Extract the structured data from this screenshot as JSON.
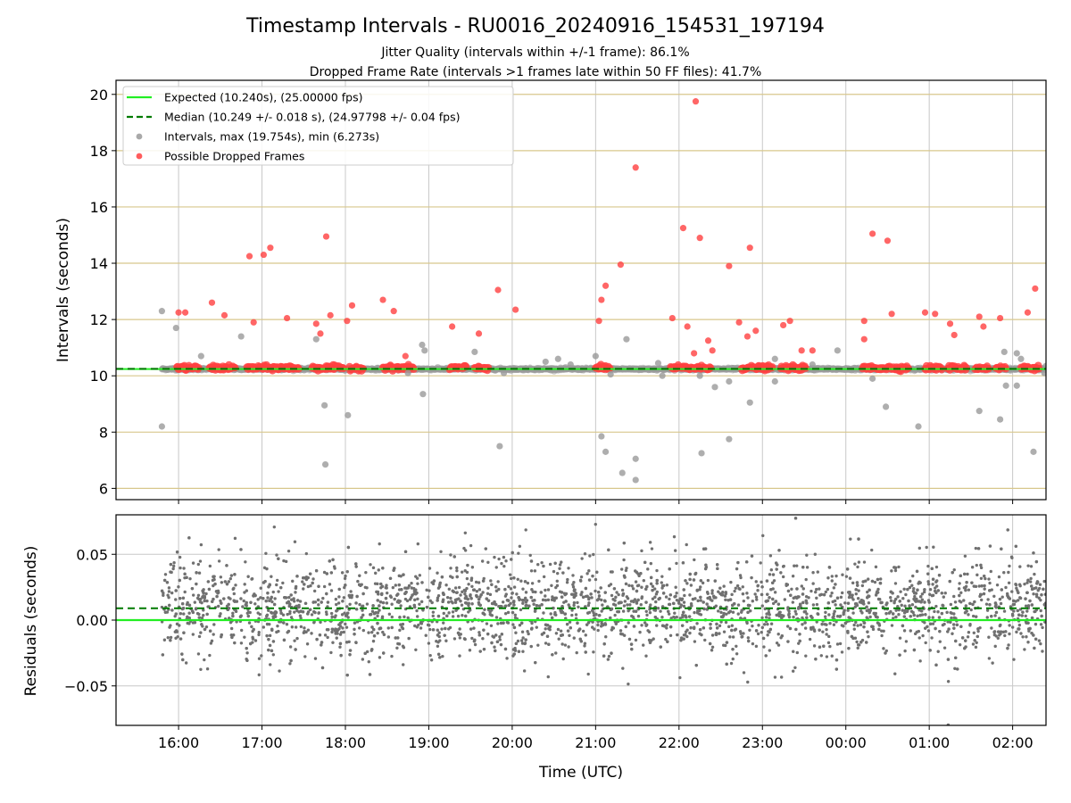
{
  "chart_data": [
    {
      "type": "scatter",
      "title": "Timestamp Intervals - RU0016_20240916_154531_197194",
      "subtitle_lines": [
        "Jitter Quality (intervals within +/-1 frame): 86.1%",
        "Dropped Frame Rate (intervals >1 frames late within 50 FF files): 41.7%"
      ],
      "ylabel": "Intervals (seconds)",
      "ylim": [
        5.6,
        20.5
      ],
      "yticks": [
        6,
        8,
        10,
        12,
        14,
        16,
        18,
        20
      ],
      "xlim_hours": [
        15.25,
        26.4
      ],
      "x_grid_hours": [
        16,
        17,
        18,
        19,
        20,
        21,
        22,
        23,
        24,
        25,
        26
      ],
      "grid": true,
      "legend_position": "upper-left",
      "expected_interval": 10.24,
      "median_interval": 10.249,
      "band_start_hour": 15.8,
      "band_end_hour": 26.4,
      "legend": [
        {
          "label": "Expected (10.240s), (25.00000 fps)",
          "style": "line",
          "color": "#22ee22"
        },
        {
          "label": "Median (10.249 +/- 0.018 s), (24.97798 +/- 0.04 fps)",
          "style": "dashed",
          "color": "#007a00"
        },
        {
          "label": "Intervals, max (19.754s), min (6.273s)",
          "style": "marker",
          "color": "#9a9a9a"
        },
        {
          "label": "Possible Dropped Frames",
          "style": "marker",
          "color": "#ff4040"
        }
      ],
      "series": [
        {
          "name": "Intervals, max (19.754s), min (6.273s)",
          "points": [
            [
              15.8,
              12.3
            ],
            [
              15.8,
              8.2
            ],
            [
              15.97,
              11.7
            ],
            [
              16.27,
              10.7
            ],
            [
              16.75,
              11.4
            ],
            [
              17.65,
              11.3
            ],
            [
              17.75,
              8.95
            ],
            [
              17.76,
              6.85
            ],
            [
              18.03,
              8.6
            ],
            [
              18.75,
              10.1
            ],
            [
              18.92,
              11.1
            ],
            [
              18.95,
              10.9
            ],
            [
              18.93,
              9.35
            ],
            [
              19.55,
              10.85
            ],
            [
              19.85,
              7.5
            ],
            [
              19.9,
              10.1
            ],
            [
              20.4,
              10.5
            ],
            [
              20.55,
              10.6
            ],
            [
              20.7,
              10.4
            ],
            [
              21.0,
              10.7
            ],
            [
              21.07,
              7.85
            ],
            [
              21.12,
              7.3
            ],
            [
              21.18,
              10.05
            ],
            [
              21.32,
              6.55
            ],
            [
              21.37,
              11.3
            ],
            [
              21.48,
              7.05
            ],
            [
              21.48,
              6.3
            ],
            [
              21.75,
              10.45
            ],
            [
              21.8,
              10.0
            ],
            [
              22.25,
              10.0
            ],
            [
              22.27,
              7.25
            ],
            [
              22.43,
              9.6
            ],
            [
              22.6,
              7.75
            ],
            [
              22.6,
              9.8
            ],
            [
              22.85,
              9.05
            ],
            [
              23.15,
              9.8
            ],
            [
              23.15,
              10.6
            ],
            [
              23.6,
              10.4
            ],
            [
              23.62,
              10.2
            ],
            [
              23.9,
              10.9
            ],
            [
              24.32,
              9.9
            ],
            [
              24.48,
              8.9
            ],
            [
              24.87,
              8.2
            ],
            [
              25.6,
              8.75
            ],
            [
              25.85,
              8.45
            ],
            [
              25.9,
              10.85
            ],
            [
              25.92,
              9.65
            ],
            [
              26.05,
              10.8
            ],
            [
              26.1,
              10.6
            ],
            [
              26.05,
              9.65
            ],
            [
              26.25,
              7.3
            ],
            [
              26.38,
              10.1
            ],
            [
              26.4,
              10.35
            ]
          ]
        },
        {
          "name": "Possible Dropped Frames",
          "points": [
            [
              16.0,
              12.25
            ],
            [
              16.08,
              12.25
            ],
            [
              16.4,
              12.6
            ],
            [
              16.55,
              12.15
            ],
            [
              16.85,
              14.25
            ],
            [
              16.9,
              11.9
            ],
            [
              17.02,
              14.3
            ],
            [
              17.1,
              14.55
            ],
            [
              17.3,
              12.05
            ],
            [
              17.65,
              11.85
            ],
            [
              17.7,
              11.5
            ],
            [
              17.77,
              14.95
            ],
            [
              17.82,
              12.15
            ],
            [
              18.02,
              11.95
            ],
            [
              18.08,
              12.5
            ],
            [
              18.45,
              12.7
            ],
            [
              18.58,
              12.3
            ],
            [
              18.72,
              10.7
            ],
            [
              19.28,
              11.75
            ],
            [
              19.6,
              11.5
            ],
            [
              19.83,
              13.05
            ],
            [
              20.04,
              12.35
            ],
            [
              21.04,
              11.95
            ],
            [
              21.07,
              12.7
            ],
            [
              21.12,
              13.2
            ],
            [
              21.3,
              13.95
            ],
            [
              21.48,
              17.4
            ],
            [
              21.92,
              12.05
            ],
            [
              22.05,
              15.25
            ],
            [
              22.1,
              11.75
            ],
            [
              22.18,
              10.8
            ],
            [
              22.2,
              19.75
            ],
            [
              22.25,
              14.9
            ],
            [
              22.35,
              11.25
            ],
            [
              22.4,
              10.9
            ],
            [
              22.6,
              13.9
            ],
            [
              22.72,
              11.9
            ],
            [
              22.82,
              11.4
            ],
            [
              22.85,
              14.55
            ],
            [
              22.92,
              11.6
            ],
            [
              23.25,
              11.8
            ],
            [
              23.33,
              11.95
            ],
            [
              23.47,
              10.9
            ],
            [
              23.6,
              10.9
            ],
            [
              24.22,
              11.95
            ],
            [
              24.22,
              11.3
            ],
            [
              24.32,
              15.05
            ],
            [
              24.5,
              14.8
            ],
            [
              24.55,
              12.2
            ],
            [
              24.95,
              12.25
            ],
            [
              25.07,
              12.2
            ],
            [
              25.25,
              11.85
            ],
            [
              25.3,
              11.45
            ],
            [
              25.6,
              12.1
            ],
            [
              25.65,
              11.75
            ],
            [
              25.85,
              12.05
            ],
            [
              26.18,
              12.25
            ],
            [
              26.27,
              13.1
            ]
          ]
        }
      ]
    },
    {
      "type": "scatter",
      "ylabel": "Residuals (seconds)",
      "xlabel": "Time (UTC)",
      "ylim": [
        -0.08,
        0.08
      ],
      "yticks": [
        0.05,
        0.0,
        -0.05
      ],
      "ytick_labels": [
        "0.05",
        "0.00",
        "−0.05"
      ],
      "xlim_hours": [
        15.25,
        26.4
      ],
      "xticks_hours": [
        16,
        17,
        18,
        19,
        20,
        21,
        22,
        23,
        24,
        25,
        26
      ],
      "xtick_labels": [
        "16:00",
        "17:00",
        "18:00",
        "19:00",
        "20:00",
        "21:00",
        "22:00",
        "23:00",
        "00:00",
        "01:00",
        "02:00"
      ],
      "grid": true,
      "expected_residual": 0.0,
      "median_residual": 0.009,
      "residual_start_hour": 15.8,
      "residual_end_hour": 26.4,
      "residual_sample_count": 3400,
      "residual_sigma": 0.018,
      "residual_center": 0.009
    }
  ],
  "colors": {
    "expected": "#22ee22",
    "median": "#007a00",
    "intervals": "#9a9a9a",
    "dropped": "#ff4040",
    "residual_points": "#707070",
    "hgrid_top": "#d8c78c",
    "grid": "#c8c8c8"
  }
}
